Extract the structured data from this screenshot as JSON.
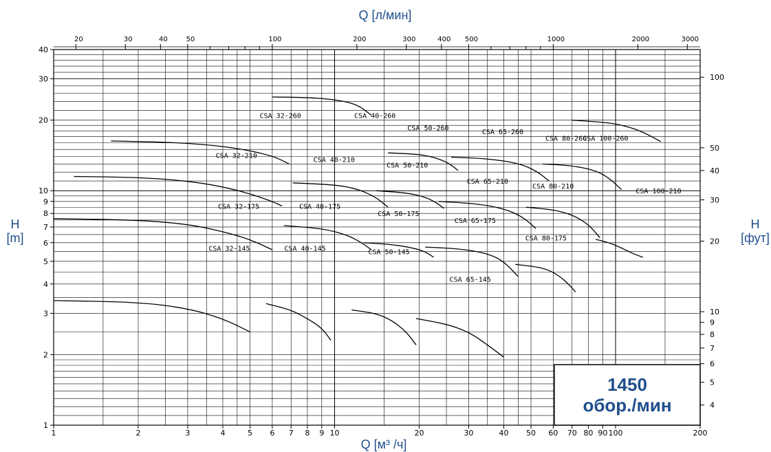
{
  "chart_data": {
    "type": "line",
    "title": "",
    "xlabel": "Q [м³ /ч]",
    "x2label": "Q [л/мин]",
    "ylabel_left": "H",
    "ylabel_left_unit": "[m]",
    "ylabel_right": "H",
    "ylabel_right_unit": "[фут]",
    "x_scale": "log",
    "y_scale": "log",
    "xlim": [
      1,
      200
    ],
    "ylim": [
      1,
      40
    ],
    "grid": true,
    "x_ticks": [
      1,
      2,
      3,
      4,
      5,
      6,
      7,
      8,
      9,
      10,
      20,
      30,
      40,
      50,
      60,
      70,
      80,
      90,
      100,
      200
    ],
    "x_tick_labels": [
      "1",
      "2",
      "3",
      "4",
      "5",
      "6",
      "7",
      "8",
      "9",
      "10",
      "20",
      "30",
      "40",
      "50",
      "60",
      "70",
      "80",
      "90",
      "100",
      "200"
    ],
    "x2_ticks": [
      20,
      30,
      40,
      50,
      100,
      200,
      300,
      400,
      500,
      1000,
      2000,
      3000
    ],
    "x2_tick_labels": [
      "20",
      "30",
      "40",
      "50",
      "100",
      "200",
      "300",
      "400",
      "500",
      "1000",
      "2000",
      "3000"
    ],
    "y_ticks": [
      1,
      2,
      3,
      4,
      5,
      6,
      7,
      8,
      9,
      10,
      20,
      30,
      40
    ],
    "y_tick_labels": [
      "1",
      "2",
      "3",
      "4",
      "5",
      "6",
      "7",
      "8",
      "9",
      "10",
      "20",
      "30",
      "40"
    ],
    "y2_ticks": [
      4,
      5,
      6,
      7,
      8,
      9,
      10,
      20,
      30,
      40,
      50,
      100
    ],
    "y2_tick_labels": [
      "4",
      "5",
      "6",
      "7",
      "8",
      "9",
      "10",
      "20",
      "30",
      "40",
      "50",
      "100"
    ],
    "annotation": {
      "line1": "1450",
      "line2": "обор./мин"
    },
    "series": [
      {
        "name": "CSA 32-145",
        "label_at": [
          5.0,
          5.7
        ],
        "label_anchor": "end",
        "points": [
          [
            1,
            3.4
          ],
          [
            2,
            3.35
          ],
          [
            3,
            3.15
          ],
          [
            4,
            2.85
          ],
          [
            5,
            2.5
          ]
        ]
      },
      {
        "name": "CSA 32-175",
        "label_at": [
          5.4,
          8.6
        ],
        "label_anchor": "end",
        "points": [
          [
            1,
            7.6
          ],
          [
            2,
            7.5
          ],
          [
            3,
            7.2
          ],
          [
            4,
            6.7
          ],
          [
            5,
            6.2
          ],
          [
            6,
            5.6
          ]
        ]
      },
      {
        "name": "CSA 32-210",
        "label_at": [
          5.3,
          14.2
        ],
        "label_anchor": "end",
        "points": [
          [
            1.18,
            11.5
          ],
          [
            2,
            11.4
          ],
          [
            3,
            11.0
          ],
          [
            4,
            10.4
          ],
          [
            5,
            9.7
          ],
          [
            6,
            9.0
          ],
          [
            6.5,
            8.6
          ]
        ]
      },
      {
        "name": "CSA 32-260",
        "label_at": [
          7.6,
          21.0
        ],
        "label_anchor": "end",
        "points": [
          [
            1.6,
            16.3
          ],
          [
            3,
            16.0
          ],
          [
            4.5,
            15.2
          ],
          [
            6,
            14.1
          ],
          [
            6.9,
            13.0
          ]
        ]
      },
      {
        "name": "CSA 40-145",
        "label_at": [
          9.3,
          5.7
        ],
        "label_anchor": "end",
        "points": [
          [
            6,
            25.1
          ],
          [
            8,
            25.0
          ],
          [
            10,
            24.5
          ],
          [
            12,
            23.4
          ],
          [
            13.5,
            21.0
          ]
        ]
      },
      {
        "name": "CSA 40-175",
        "label_at": [
          10.5,
          8.6
        ],
        "label_anchor": "end",
        "points": [
          [
            5.7,
            3.3
          ],
          [
            7,
            3.1
          ],
          [
            8,
            2.85
          ],
          [
            9,
            2.6
          ],
          [
            9.7,
            2.3
          ]
        ]
      },
      {
        "name": "CSA 40-210",
        "label_at": [
          11.8,
          13.6
        ],
        "label_anchor": "end",
        "points": [
          [
            6.6,
            7.1
          ],
          [
            9,
            6.9
          ],
          [
            11,
            6.5
          ],
          [
            12.5,
            6.0
          ],
          [
            13.5,
            5.6
          ]
        ]
      },
      {
        "name": "CSA 40-260",
        "label_at": [
          16.5,
          21.0
        ],
        "label_anchor": "end",
        "points": [
          [
            7.1,
            10.8
          ],
          [
            10,
            10.6
          ],
          [
            12,
            10.2
          ],
          [
            14,
            9.4
          ],
          [
            15.5,
            8.5
          ]
        ]
      },
      {
        "name": "CSA 50-145",
        "label_at": [
          18.5,
          5.5
        ],
        "label_anchor": "end",
        "points": [
          [
            11.5,
            3.1
          ],
          [
            14,
            3.0
          ],
          [
            16,
            2.8
          ],
          [
            18,
            2.5
          ],
          [
            19.5,
            2.2
          ]
        ]
      },
      {
        "name": "CSA 50-175",
        "label_at": [
          20.0,
          8.0
        ],
        "label_anchor": "end",
        "points": [
          [
            12.7,
            6.0
          ],
          [
            16,
            5.9
          ],
          [
            19,
            5.7
          ],
          [
            21,
            5.5
          ],
          [
            22.5,
            5.2
          ]
        ]
      },
      {
        "name": "CSA 50-210",
        "label_at": [
          21.5,
          12.9
        ],
        "label_anchor": "end",
        "points": [
          [
            14,
            10.0
          ],
          [
            18,
            9.8
          ],
          [
            21,
            9.4
          ],
          [
            23,
            8.9
          ],
          [
            24.5,
            8.4
          ]
        ]
      },
      {
        "name": "CSA 50-260",
        "label_at": [
          25.5,
          18.6
        ],
        "label_anchor": "end",
        "points": [
          [
            15.5,
            14.5
          ],
          [
            20,
            14.3
          ],
          [
            23,
            13.8
          ],
          [
            25.5,
            13.1
          ],
          [
            27.5,
            12.2
          ]
        ]
      },
      {
        "name": "CSA 65-145",
        "label_at": [
          36.0,
          4.2
        ],
        "label_anchor": "end",
        "points": [
          [
            19.5,
            2.85
          ],
          [
            25,
            2.7
          ],
          [
            30,
            2.5
          ],
          [
            35,
            2.2
          ],
          [
            40,
            1.95
          ]
        ]
      },
      {
        "name": "CSA 65-175",
        "label_at": [
          37.5,
          7.5
        ],
        "label_anchor": "end",
        "points": [
          [
            21,
            5.75
          ],
          [
            28,
            5.65
          ],
          [
            35,
            5.4
          ],
          [
            40,
            5.0
          ],
          [
            45,
            4.3
          ]
        ]
      },
      {
        "name": "CSA 65-210",
        "label_at": [
          41.5,
          11.0
        ],
        "label_anchor": "end",
        "points": [
          [
            23.5,
            9.0
          ],
          [
            32,
            8.8
          ],
          [
            40,
            8.4
          ],
          [
            47,
            7.7
          ],
          [
            52,
            6.9
          ]
        ]
      },
      {
        "name": "CSA 65-260",
        "label_at": [
          47.0,
          17.9
        ],
        "label_anchor": "end",
        "points": [
          [
            26,
            13.9
          ],
          [
            35,
            13.7
          ],
          [
            45,
            13.1
          ],
          [
            52,
            12.2
          ],
          [
            58,
            11.0
          ]
        ]
      },
      {
        "name": "CSA 80-175",
        "label_at": [
          67.0,
          6.3
        ],
        "label_anchor": "end",
        "points": [
          [
            44,
            4.85
          ],
          [
            55,
            4.7
          ],
          [
            62,
            4.4
          ],
          [
            68,
            4.0
          ],
          [
            72,
            3.7
          ]
        ]
      },
      {
        "name": "CSA 80-210",
        "label_at": [
          71.0,
          10.5
        ],
        "label_anchor": "end",
        "points": [
          [
            48,
            8.5
          ],
          [
            60,
            8.3
          ],
          [
            70,
            7.9
          ],
          [
            80,
            7.2
          ],
          [
            88,
            6.3
          ]
        ]
      },
      {
        "name": "CSA 80-260",
        "label_at": [
          79.0,
          16.8
        ],
        "label_anchor": "end",
        "points": [
          [
            55,
            13.0
          ],
          [
            70,
            12.8
          ],
          [
            85,
            12.2
          ],
          [
            95,
            11.3
          ],
          [
            105,
            10.1
          ]
        ]
      },
      {
        "name": "CSA 100-260",
        "label_at": [
          111.0,
          16.8
        ],
        "label_anchor": "end",
        "points": [
          [
            70,
            20.0
          ],
          [
            95,
            19.5
          ],
          [
            110,
            18.8
          ],
          [
            125,
            17.8
          ],
          [
            145,
            16.2
          ]
        ]
      },
      {
        "name": "CSA 100-210",
        "label_at": [
          118.0,
          10.0
        ],
        "label_anchor": "start",
        "points": [
          [
            85,
            6.2
          ],
          [
            95,
            6.0
          ],
          [
            105,
            5.7
          ],
          [
            115,
            5.4
          ],
          [
            125,
            5.2
          ]
        ]
      }
    ]
  }
}
